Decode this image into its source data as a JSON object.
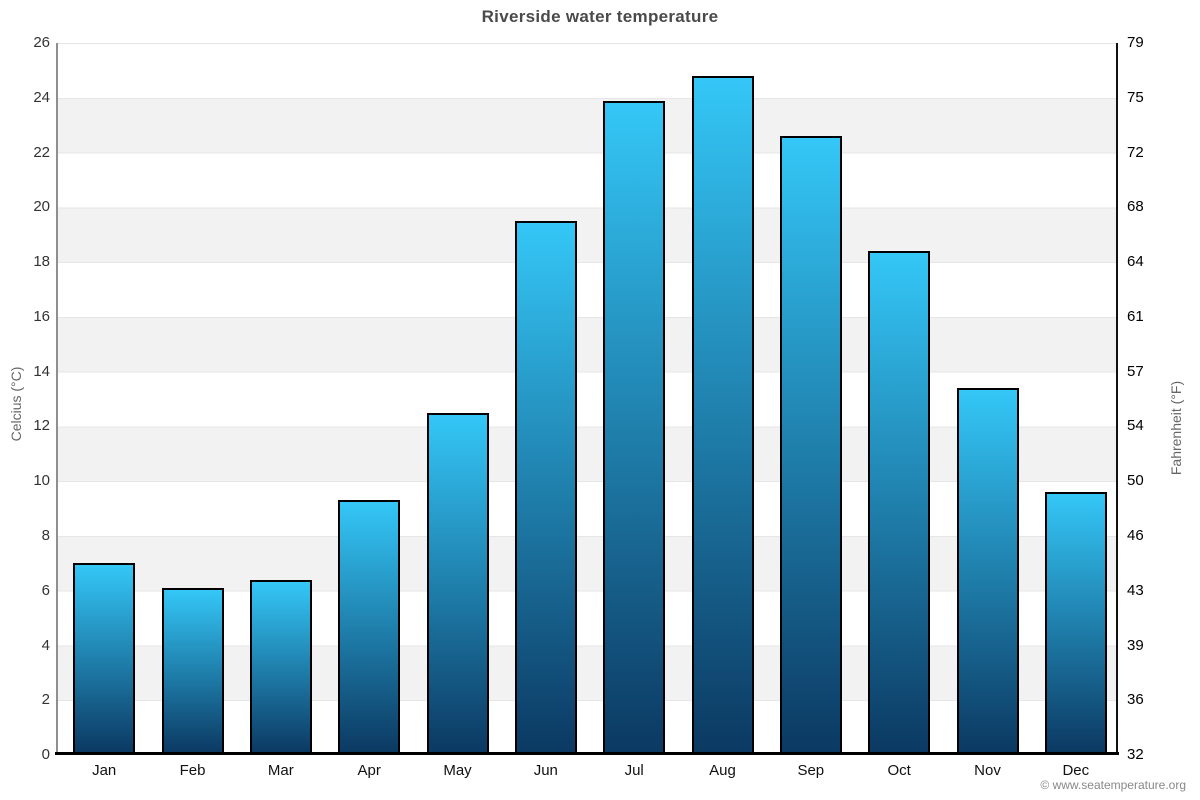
{
  "title": "Riverside water temperature",
  "footer": {
    "credit": "© www.seatemperature.org"
  },
  "axes": {
    "left_label": "Celcius (°C)",
    "right_label": "Fahrenheit (°F)"
  },
  "chart_data": {
    "type": "bar",
    "title": "Riverside water temperature",
    "categories": [
      "Jan",
      "Feb",
      "Mar",
      "Apr",
      "May",
      "Jun",
      "Jul",
      "Aug",
      "Sep",
      "Oct",
      "Nov",
      "Dec"
    ],
    "values": [
      7.0,
      6.1,
      6.4,
      9.3,
      12.5,
      19.5,
      23.9,
      24.8,
      22.6,
      18.4,
      13.4,
      9.6
    ],
    "xlabel": "",
    "ylabel": "Celcius (°C)",
    "ylabel_right": "Fahrenheit (°F)",
    "ylim": [
      0,
      26
    ],
    "ylim_right": [
      32,
      79
    ],
    "yticks": [
      0,
      2,
      4,
      6,
      8,
      10,
      12,
      14,
      16,
      18,
      20,
      22,
      24,
      26
    ],
    "yticks_right": [
      32,
      36,
      39,
      43,
      46,
      50,
      54,
      57,
      61,
      64,
      68,
      72,
      75,
      79
    ],
    "legend": "none",
    "grid": "alternating horizontal bands every 2°C",
    "colors": {
      "bar_gradient_top": "#34C7F7",
      "bar_gradient_bottom": "#0B3962",
      "bar_border": "#000000",
      "band_gray": "#F2F2F2",
      "band_white": "#FFFFFF",
      "gridline": "#E6E6E6",
      "title_text": "#4A4A4A",
      "left_tick_text": "#333333",
      "right_tick_text": "#000000",
      "axis_title_text": "#666666",
      "footer_text": "#888888"
    }
  }
}
